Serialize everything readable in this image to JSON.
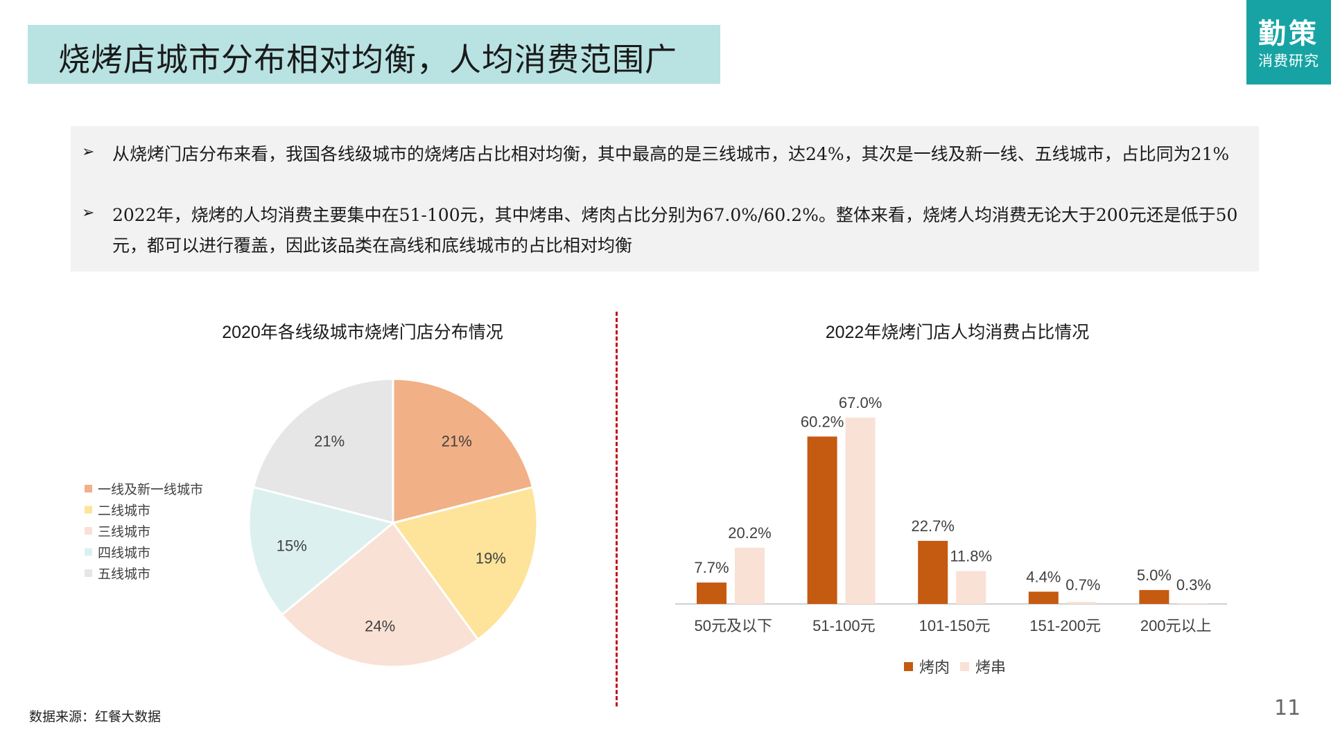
{
  "header": {
    "title": "烧烤店城市分布相对均衡，人均消费范围广"
  },
  "logo": {
    "main": "勤策",
    "sub": "消费研究"
  },
  "summary": {
    "bullet_mark": "➢",
    "bullets": [
      "从烧烤门店分布来看，我国各线级城市的烧烤店占比相对均衡，其中最高的是三线城市，达24%，其次是一线及新一线、五线城市，占比同为21%",
      "2022年，烧烤的人均消费主要集中在51-100元，其中烤串、烤肉占比分别为67.0%/60.2%。整体来看，烧烤人均消费无论大于200元还是低于50元，都可以进行覆盖，因此该品类在高线和底线城市的占比相对均衡"
    ]
  },
  "chart_data": [
    {
      "type": "pie",
      "title": "2020年各线级城市烧烤门店分布情况",
      "labels": [
        "一线及新一线城市",
        "二线城市",
        "三线城市",
        "四线城市",
        "五线城市"
      ],
      "values": [
        21,
        19,
        24,
        15,
        21
      ],
      "value_labels": [
        "21%",
        "19%",
        "24%",
        "15%",
        "21%"
      ],
      "colors": [
        "#f2b086",
        "#fde49a",
        "#f9e1d6",
        "#dcf0f0",
        "#e6e6e6"
      ],
      "legend_position": "left"
    },
    {
      "type": "bar",
      "title": "2022年烧烤门店人均消费占比情况",
      "categories": [
        "50元及以下",
        "51-100元",
        "101-150元",
        "151-200元",
        "200元以上"
      ],
      "series": [
        {
          "name": "烤肉",
          "values": [
            7.7,
            60.2,
            22.7,
            4.4,
            5.0
          ],
          "labels": [
            "7.7%",
            "60.2%",
            "22.7%",
            "4.4%",
            "5.0%"
          ],
          "color": "#c55a11"
        },
        {
          "name": "烤串",
          "values": [
            20.2,
            67.0,
            11.8,
            0.7,
            0.3
          ],
          "labels": [
            "20.2%",
            "67.0%",
            "11.8%",
            "0.7%",
            "0.3%"
          ],
          "color": "#f9e1d6"
        }
      ],
      "ylim": [
        0,
        67
      ],
      "grid": false,
      "legend_position": "bottom"
    }
  ],
  "footer": {
    "source": "数据来源：红餐大数据",
    "page_number": "11"
  }
}
